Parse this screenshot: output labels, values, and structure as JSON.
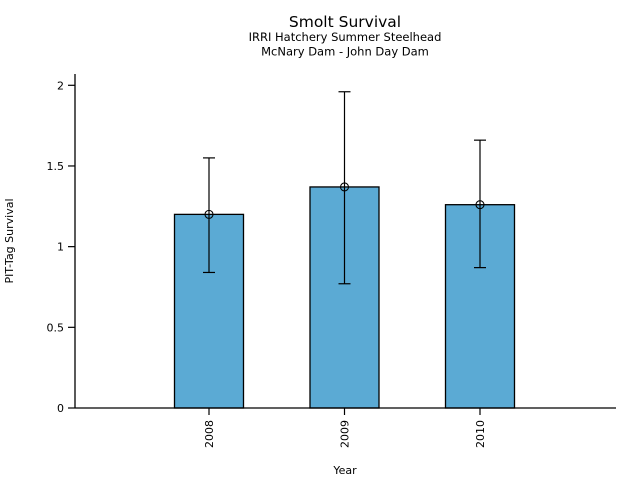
{
  "chart_data": {
    "type": "bar",
    "title": "Smolt Survival",
    "subtitle1": "IRRI Hatchery Summer Steelhead",
    "subtitle2": "McNary Dam - John Day Dam",
    "xlabel": "Year",
    "ylabel": "PIT-Tag Survival",
    "categories": [
      "2008",
      "2009",
      "2010"
    ],
    "values": [
      1.2,
      1.37,
      1.26
    ],
    "error_low": [
      0.84,
      0.77,
      0.87
    ],
    "error_high": [
      1.55,
      1.96,
      1.66
    ],
    "yticks": [
      0,
      0.5,
      1,
      1.5,
      2
    ],
    "ytick_labels": [
      "0",
      "0.5",
      "1",
      "1.5",
      "2"
    ],
    "ylim": [
      0,
      2.07
    ],
    "x_tick_rotation": 90,
    "grid": false,
    "legend_position": "none",
    "marker": "open-circle",
    "bar_color": "#5BAAD4",
    "bar_edge_color": "#000000",
    "axis_color": "#000000",
    "text_color": "#000000"
  }
}
